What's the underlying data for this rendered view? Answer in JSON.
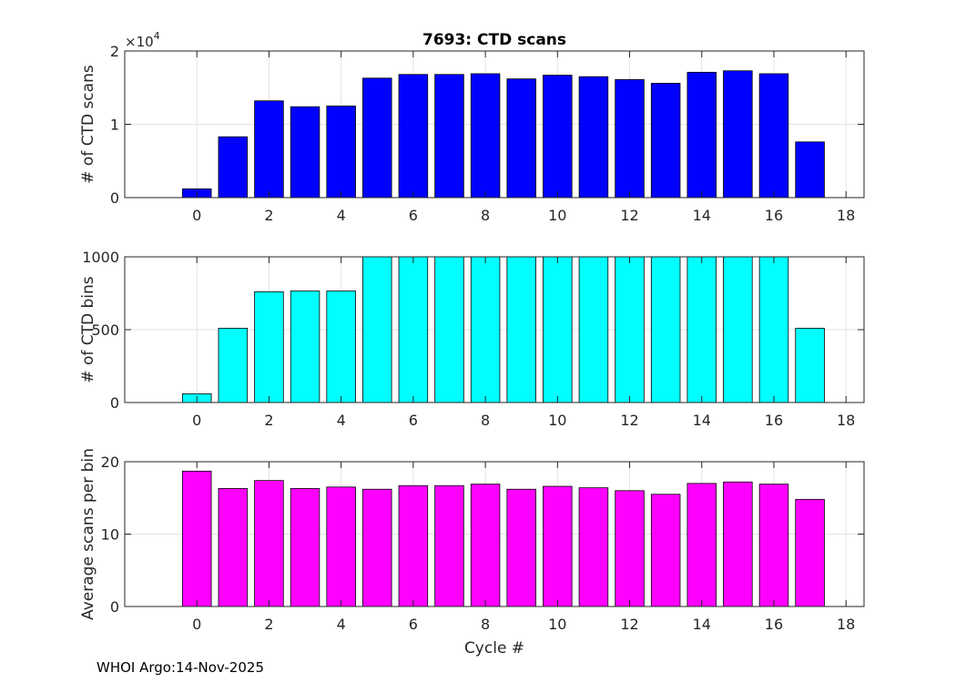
{
  "footer": "WHOI Argo:14-Nov-2025",
  "chart_data": [
    {
      "type": "bar",
      "title": "7693: CTD scans",
      "xlabel": "",
      "ylabel": "# of CTD scans",
      "exponent_label": "×10",
      "exponent_power": "4",
      "color": "#0000ff",
      "x": [
        0,
        1,
        2,
        3,
        4,
        5,
        6,
        7,
        8,
        9,
        10,
        11,
        12,
        13,
        14,
        15,
        16,
        17
      ],
      "values": [
        1200,
        8300,
        13200,
        12400,
        12500,
        16300,
        16800,
        16800,
        16900,
        16200,
        16700,
        16500,
        16100,
        15600,
        17100,
        17300,
        16900,
        7600
      ],
      "xlim": [
        -2,
        18.5
      ],
      "ylim": [
        0,
        20000
      ],
      "xticks": [
        0,
        2,
        4,
        6,
        8,
        10,
        12,
        14,
        16,
        18
      ],
      "yticks": [
        0,
        10000,
        20000
      ],
      "ytick_labels": [
        "0",
        "1",
        "2"
      ]
    },
    {
      "type": "bar",
      "title": "",
      "xlabel": "",
      "ylabel": "# of CTD bins",
      "color": "#00ffff",
      "x": [
        0,
        1,
        2,
        3,
        4,
        5,
        6,
        7,
        8,
        9,
        10,
        11,
        12,
        13,
        14,
        15,
        16,
        17
      ],
      "values": [
        60,
        510,
        760,
        765,
        765,
        1000,
        1000,
        1000,
        1000,
        1000,
        1000,
        1000,
        1000,
        1000,
        1000,
        1000,
        1000,
        510
      ],
      "xlim": [
        -2,
        18.5
      ],
      "ylim": [
        0,
        1000
      ],
      "xticks": [
        0,
        2,
        4,
        6,
        8,
        10,
        12,
        14,
        16,
        18
      ],
      "yticks": [
        0,
        500,
        1000
      ],
      "ytick_labels": [
        "0",
        "500",
        "1000"
      ]
    },
    {
      "type": "bar",
      "title": "",
      "xlabel": "Cycle #",
      "ylabel": "Average scans per bin",
      "color": "#ff00ff",
      "x": [
        0,
        1,
        2,
        3,
        4,
        5,
        6,
        7,
        8,
        9,
        10,
        11,
        12,
        13,
        14,
        15,
        16,
        17
      ],
      "values": [
        18.7,
        16.3,
        17.4,
        16.3,
        16.5,
        16.2,
        16.7,
        16.7,
        16.9,
        16.2,
        16.6,
        16.4,
        16.0,
        15.5,
        17.0,
        17.2,
        16.9,
        14.8
      ],
      "xlim": [
        -2,
        18.5
      ],
      "ylim": [
        0,
        20
      ],
      "xticks": [
        0,
        2,
        4,
        6,
        8,
        10,
        12,
        14,
        16,
        18
      ],
      "yticks": [
        0,
        10,
        20
      ],
      "ytick_labels": [
        "0",
        "10",
        "20"
      ]
    }
  ]
}
